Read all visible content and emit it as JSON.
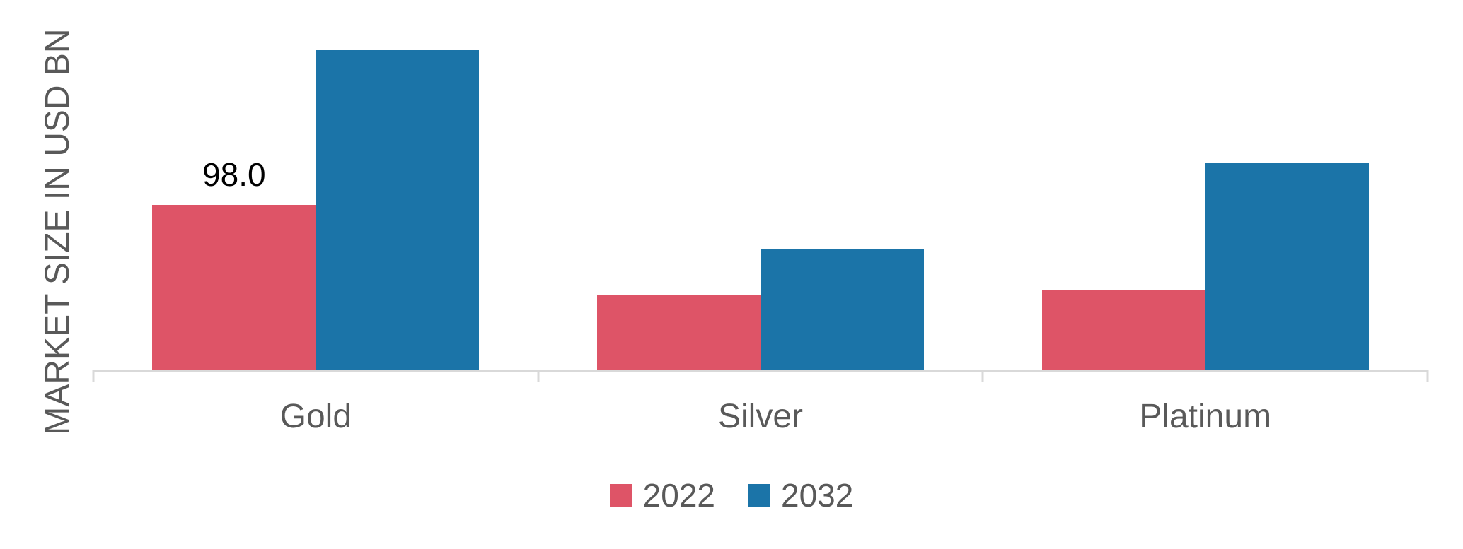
{
  "chart_data": {
    "type": "bar",
    "title": "",
    "ylabel": "MARKET SIZE IN USD BN",
    "xlabel": "",
    "categories": [
      "Gold",
      "Silver",
      "Platinum"
    ],
    "series": [
      {
        "name": "2022",
        "color": "#DE5467",
        "values": [
          98.0,
          44,
          47
        ],
        "data_labels": [
          "98.0",
          "",
          ""
        ]
      },
      {
        "name": "2032",
        "color": "#1B74A8",
        "values": [
          190,
          72,
          123
        ],
        "data_labels": [
          "",
          "",
          ""
        ]
      }
    ],
    "ylim": [
      0,
      220
    ],
    "grid": false,
    "legend_position": "bottom",
    "axis_color": "#D9D9D9",
    "text_color": "#595959",
    "data_label_color": "#000000"
  },
  "legend": {
    "items": [
      {
        "label": "2022",
        "color": "#DE5467"
      },
      {
        "label": "2032",
        "color": "#1B74A8"
      }
    ]
  }
}
